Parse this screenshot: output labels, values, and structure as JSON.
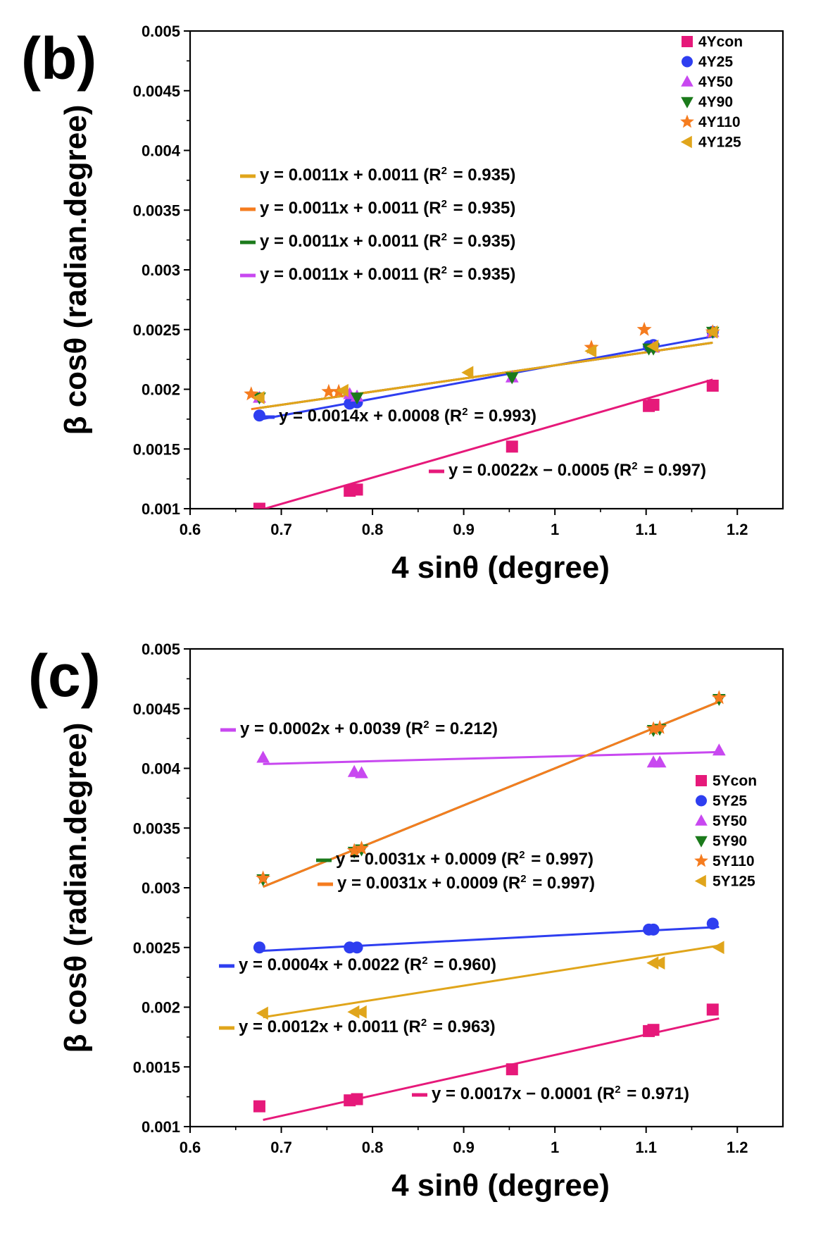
{
  "chart_data": [
    {
      "panel_label": "(b)",
      "type": "scatter",
      "xlabel": "4 sinθ (degree)",
      "ylabel": "β cosθ (radian.degree)",
      "xlim": [
        0.6,
        1.25
      ],
      "ylim": [
        0.001,
        0.005
      ],
      "xticks": [
        "0.6",
        "0.7",
        "0.8",
        "0.9",
        "1",
        "1.1",
        "1.2"
      ],
      "yticks": [
        "0.001",
        "0.0015",
        "0.002",
        "0.0025",
        "0.003",
        "0.0035",
        "0.004",
        "0.0045",
        "0.005"
      ],
      "legend_position": "top-right",
      "series": [
        {
          "name": "4Ycon",
          "color": "#e6197a",
          "marker": "square",
          "x": [
            0.676,
            0.775,
            0.783,
            0.953,
            1.103,
            1.108,
            1.173
          ],
          "y": [
            0.001,
            0.00115,
            0.00116,
            0.00152,
            0.00186,
            0.00187,
            0.00203
          ],
          "fit": {
            "slope": 0.0022,
            "intercept": -0.0005,
            "x_range": [
              0.676,
              1.173
            ]
          }
        },
        {
          "name": "4Y25",
          "color": "#2e3ef0",
          "marker": "circle",
          "x": [
            0.676,
            0.775,
            0.783,
            1.103,
            1.108,
            1.173
          ],
          "y": [
            0.00178,
            0.00188,
            0.00189,
            0.00236,
            0.00237,
            0.00248
          ],
          "fit": {
            "slope": 0.0014,
            "intercept": 0.0008,
            "x_range": [
              0.676,
              1.173
            ]
          }
        },
        {
          "name": "4Y50",
          "color": "#c848f0",
          "marker": "triangle-up",
          "x": [
            0.676,
            0.775,
            0.783,
            0.953,
            1.108,
            1.173
          ],
          "y": [
            0.00193,
            0.00196,
            0.00194,
            0.0021,
            0.00235,
            0.00248
          ],
          "fit": {
            "slope": 0.0011,
            "intercept": 0.0011,
            "x_range": [
              0.676,
              1.173
            ]
          }
        },
        {
          "name": "4Y90",
          "color": "#1b7a1b",
          "marker": "triangle-down",
          "x": [
            0.676,
            0.783,
            0.953,
            1.103,
            1.108,
            1.173
          ],
          "y": [
            0.00193,
            0.00193,
            0.0021,
            0.00234,
            0.00234,
            0.00248
          ],
          "fit": {
            "slope": 0.0011,
            "intercept": 0.0011,
            "x_range": [
              0.676,
              1.173
            ]
          }
        },
        {
          "name": "4Y110",
          "color": "#f57c1f",
          "marker": "star",
          "x": [
            0.667,
            0.752,
            0.763,
            1.04,
            1.098,
            1.173
          ],
          "y": [
            0.00196,
            0.00198,
            0.00198,
            0.00235,
            0.0025,
            0.00248
          ],
          "fit": {
            "slope": 0.0011,
            "intercept": 0.0011,
            "x_range": [
              0.667,
              1.173
            ]
          }
        },
        {
          "name": "4Y125",
          "color": "#e0a51b",
          "marker": "triangle-left",
          "x": [
            0.676,
            0.768,
            0.905,
            1.04,
            1.108,
            1.173
          ],
          "y": [
            0.00193,
            0.00199,
            0.00214,
            0.00232,
            0.00236,
            0.00248
          ],
          "fit": {
            "slope": 0.0011,
            "intercept": 0.0011,
            "x_range": [
              0.676,
              1.173
            ]
          }
        }
      ],
      "equations": [
        {
          "series": "4Y125",
          "color": "#e0a51b",
          "text": "y = 0.0011x + 0.0011  (R² = 0.935)"
        },
        {
          "series": "4Y110",
          "color": "#f57c1f",
          "text": "y = 0.0011x + 0.0011  (R² = 0.935)"
        },
        {
          "series": "4Y90",
          "color": "#1b7a1b",
          "text": "y = 0.0011x + 0.0011  (R² = 0.935)"
        },
        {
          "series": "4Y50",
          "color": "#c848f0",
          "text": "y = 0.0011x + 0.0011  (R² = 0.935)"
        },
        {
          "series": "4Y25",
          "color": "#2e3ef0",
          "text": "y = 0.0014x + 0.0008  (R² = 0.993)"
        },
        {
          "series": "4Ycon",
          "color": "#e6197a",
          "text": "y = 0.0022x − 0.0005  (R² = 0.997)"
        }
      ]
    },
    {
      "panel_label": "(c)",
      "type": "scatter",
      "xlabel": "4 sinθ (degree)",
      "ylabel": "β cosθ (radian.degree)",
      "xlim": [
        0.6,
        1.25
      ],
      "ylim": [
        0.001,
        0.005
      ],
      "xticks": [
        "0.6",
        "0.7",
        "0.8",
        "0.9",
        "1",
        "1.1",
        "1.2"
      ],
      "yticks": [
        "0.001",
        "0.0015",
        "0.002",
        "0.0025",
        "0.003",
        "0.0035",
        "0.004",
        "0.0045",
        "0.005"
      ],
      "legend_position": "right",
      "series": [
        {
          "name": "5Ycon",
          "color": "#e6197a",
          "marker": "square",
          "x": [
            0.676,
            0.775,
            0.783,
            0.953,
            1.103,
            1.108,
            1.173
          ],
          "y": [
            0.00117,
            0.00122,
            0.00123,
            0.00148,
            0.0018,
            0.00181,
            0.00198
          ],
          "fit": {
            "slope": 0.0017,
            "intercept": -0.0001,
            "x_range": [
              0.68,
              1.18
            ]
          }
        },
        {
          "name": "5Y25",
          "color": "#2e3ef0",
          "marker": "circle",
          "x": [
            0.676,
            0.775,
            0.783,
            1.103,
            1.108,
            1.173
          ],
          "y": [
            0.0025,
            0.0025,
            0.0025,
            0.00265,
            0.00265,
            0.0027
          ],
          "fit": {
            "slope": 0.0004,
            "intercept": 0.0022,
            "x_range": [
              0.68,
              1.18
            ]
          }
        },
        {
          "name": "5Y50",
          "color": "#c848f0",
          "marker": "triangle-up",
          "x": [
            0.68,
            0.78,
            0.788,
            1.108,
            1.115,
            1.18
          ],
          "y": [
            0.00409,
            0.00397,
            0.00396,
            0.00405,
            0.00405,
            0.00415
          ],
          "fit": {
            "slope": 0.0002,
            "intercept": 0.0039,
            "x_range": [
              0.68,
              1.18
            ]
          }
        },
        {
          "name": "5Y90",
          "color": "#1b7a1b",
          "marker": "triangle-down",
          "x": [
            0.68,
            0.78,
            0.788,
            1.108,
            1.115,
            1.18
          ],
          "y": [
            0.00307,
            0.0033,
            0.00332,
            0.00432,
            0.00433,
            0.00458
          ],
          "fit": {
            "slope": 0.0031,
            "intercept": 0.0009,
            "x_range": [
              0.68,
              1.18
            ]
          }
        },
        {
          "name": "5Y110",
          "color": "#f57c1f",
          "marker": "star",
          "x": [
            0.68,
            0.78,
            0.788,
            1.108,
            1.115,
            1.18
          ],
          "y": [
            0.00308,
            0.00331,
            0.00333,
            0.00433,
            0.00434,
            0.00459
          ],
          "fit": {
            "slope": 0.0031,
            "intercept": 0.0009,
            "x_range": [
              0.68,
              1.18
            ]
          }
        },
        {
          "name": "5Y125",
          "color": "#e0a51b",
          "marker": "triangle-left",
          "x": [
            0.68,
            0.78,
            0.788,
            1.108,
            1.115,
            1.18
          ],
          "y": [
            0.00195,
            0.00196,
            0.00196,
            0.00237,
            0.00237,
            0.0025
          ],
          "fit": {
            "slope": 0.0012,
            "intercept": 0.0011,
            "x_range": [
              0.68,
              1.18
            ]
          }
        }
      ],
      "equations": [
        {
          "series": "5Y50",
          "color": "#c848f0",
          "text": "y = 0.0002x + 0.0039  (R² = 0.212)"
        },
        {
          "series": "5Y90",
          "color": "#1b7a1b",
          "text": "y = 0.0031x + 0.0009  (R² = 0.997)"
        },
        {
          "series": "5Y110",
          "color": "#f57c1f",
          "text": "y = 0.0031x + 0.0009  (R² = 0.997)"
        },
        {
          "series": "5Y25",
          "color": "#2e3ef0",
          "text": "y = 0.0004x + 0.0022  (R² = 0.960)"
        },
        {
          "series": "5Y125",
          "color": "#e0a51b",
          "text": "y = 0.0012x + 0.0011  (R² = 0.963)"
        },
        {
          "series": "5Ycon",
          "color": "#e6197a",
          "text": "y = 0.0017x − 0.0001  (R² = 0.971)"
        }
      ]
    }
  ]
}
